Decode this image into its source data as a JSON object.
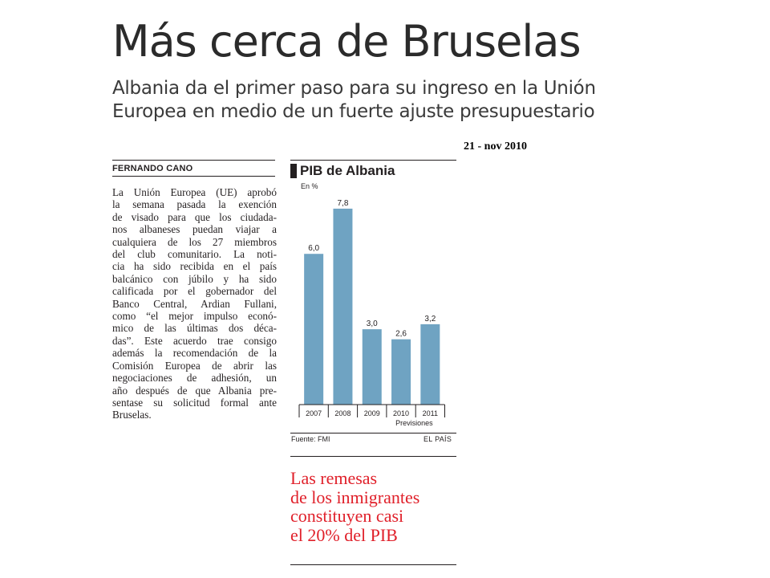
{
  "headline": "Más cerca de Bruselas",
  "subheadline": "Albania da el primer paso para su ingreso en la Unión Europea en medio de un fuerte ajuste presupuestario",
  "date_note": "21 - nov 2010",
  "byline": "FERNANDO CANO",
  "body_lines": [
    "La Unión Europea (UE) aprobó",
    "la semana pasada la exención",
    "de visado para que los ciudada-",
    "nos albaneses puedan viajar a",
    "cualquiera de los 27 miembros",
    "del club comunitario. La noti-",
    "cia ha sido recibida en el país",
    "balcánico con júbilo y ha sido",
    "calificada por el gobernador del",
    "Banco Central, Ardian Fullani,",
    "como “el mejor impulso econó-",
    "mico de las últimas dos déca-",
    "das”. Este acuerdo trae consigo",
    "además la recomendación de la",
    "Comisión Europea de abrir las",
    "negociaciones de adhesión, un",
    "año después de que Albania pre-",
    "sentase su solicitud formal ante",
    "Bruselas."
  ],
  "chart_data": {
    "type": "bar",
    "title": "PIB de Albania",
    "ylabel": "En %",
    "categories": [
      "2007",
      "2008",
      "2009",
      "2010",
      "2011"
    ],
    "values": [
      6.0,
      7.8,
      3.0,
      2.6,
      3.2
    ],
    "value_labels": [
      "6,0",
      "7,8",
      "3,0",
      "2,6",
      "3,2"
    ],
    "forecast_note": "Previsiones",
    "ylim": [
      0,
      8.5
    ],
    "grid": false,
    "bar_color": "#6fa3c2",
    "source": "Fuente: FMI",
    "credit": "EL PAÍS"
  },
  "pull_quote_lines": [
    "Las remesas",
    "de los inmigrantes",
    "constituyen casi",
    "el 20% del PIB"
  ],
  "colors": {
    "pull_quote": "#e0202a",
    "text": "#231f20"
  }
}
